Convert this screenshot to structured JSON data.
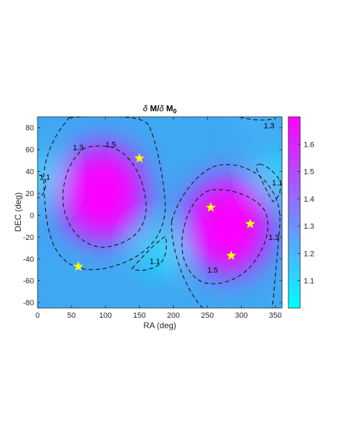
{
  "chart_data": {
    "type": "heatmap",
    "title": "δ M/δ M0",
    "title_parts": {
      "delta1": "δ",
      "m1": "M",
      "slash": "/",
      "delta2": "δ",
      "m2": "M",
      "sub": "0"
    },
    "xlabel": "RA  (deg)",
    "ylabel": "DEC (deg)",
    "xlim": [
      0,
      360
    ],
    "ylim": [
      -85,
      90
    ],
    "x_ticks": [
      "0",
      "50",
      "100",
      "150",
      "200",
      "250",
      "300",
      "350"
    ],
    "y_ticks": [
      "80",
      "60",
      "40",
      "20",
      "0",
      "-20",
      "-40",
      "-60",
      "-80"
    ],
    "colorbar": {
      "range": [
        1.0,
        1.7
      ],
      "ticks": [
        "1.6",
        "1.5",
        "1.4",
        "1.3",
        "1.2",
        "1.1"
      ],
      "colormap": "cool",
      "low_color": "#00ffff",
      "high_color": "#ff00ff"
    },
    "contour_levels": [
      1.1,
      1.3,
      1.5
    ],
    "contour_labels": [
      {
        "text": "1.1",
        "ra": 3,
        "dec": 35
      },
      {
        "text": "1.3",
        "ra": 52,
        "dec": 62
      },
      {
        "text": "1.5",
        "ra": 100,
        "dec": 65
      },
      {
        "text": "1.3",
        "ra": 333,
        "dec": 82
      },
      {
        "text": "1.1",
        "ra": 345,
        "dec": 30
      },
      {
        "text": "1.3",
        "ra": 340,
        "dec": -20
      },
      {
        "text": "1.1",
        "ra": 165,
        "dec": -42
      },
      {
        "text": "1.5",
        "ra": 250,
        "dec": -50
      }
    ],
    "maxima": [
      {
        "ra": 95,
        "dec": 20,
        "value": 1.69
      },
      {
        "ra": 280,
        "dec": -10,
        "value": 1.69
      }
    ],
    "minima": [
      {
        "ra": 180,
        "dec": -35,
        "value": 1.0
      },
      {
        "ra": 0,
        "dec": 35,
        "value": 1.05
      },
      {
        "ra": 355,
        "dec": 40,
        "value": 1.05
      },
      {
        "ra": 320,
        "dec": 90,
        "value": 1.2
      }
    ],
    "markers": {
      "symbol": "star",
      "color": "#ffff00",
      "points": [
        {
          "ra": 150,
          "dec": 52
        },
        {
          "ra": 60,
          "dec": -47
        },
        {
          "ra": 255,
          "dec": 7
        },
        {
          "ra": 313,
          "dec": -8
        },
        {
          "ra": 285,
          "dec": -37
        }
      ]
    },
    "grid": false
  }
}
